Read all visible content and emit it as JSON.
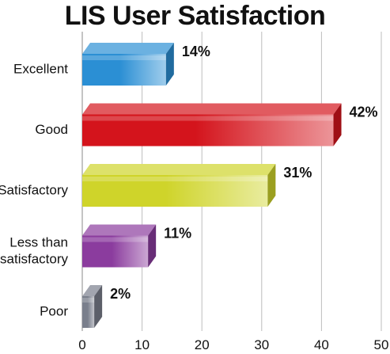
{
  "chart_data": {
    "type": "bar",
    "orientation": "horizontal",
    "title": "LIS User Satisfaction",
    "xlabel": "",
    "ylabel": "",
    "categories": [
      "Excellent",
      "Good",
      "Satisfactory",
      "Less than satisfactory",
      "Poor"
    ],
    "category_lines": [
      [
        "Excellent"
      ],
      [
        "Good"
      ],
      [
        "Satisfactory"
      ],
      [
        "Less than",
        "satisfactory"
      ],
      [
        "Poor"
      ]
    ],
    "values": [
      14,
      42,
      31,
      11,
      2
    ],
    "value_labels": [
      "14%",
      "42%",
      "31%",
      "11%",
      "2%"
    ],
    "xlim": [
      0,
      50
    ],
    "xticks": [
      0,
      10,
      20,
      30,
      40,
      50
    ],
    "xtick_labels": [
      "0",
      "10",
      "20",
      "30",
      "40",
      "50"
    ],
    "grid": true,
    "legend": "none",
    "colors": [
      "#2b8fd4",
      "#d4141c",
      "#cfd42a",
      "#8b3c9e",
      "#7a7f8c"
    ]
  }
}
